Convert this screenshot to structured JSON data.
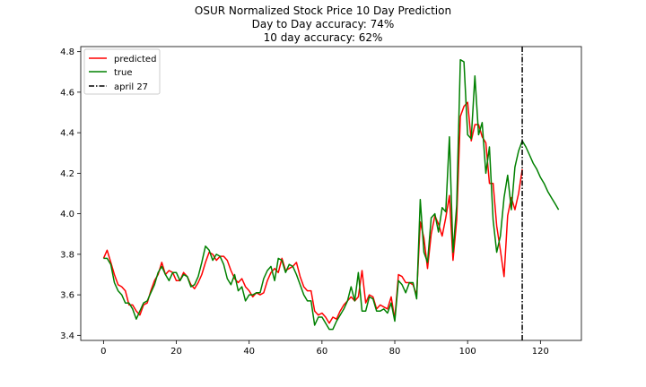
{
  "chart_data": {
    "type": "line",
    "title_lines": [
      "OSUR Normalized Stock Price 10 Day Prediction",
      "Day to Day accuracy: 74%",
      "10 day accuracy: 62%"
    ],
    "xlabel": "",
    "ylabel": "",
    "xlim": [
      -6.25,
      131.25
    ],
    "ylim": [
      3.375,
      4.825
    ],
    "xticks": [
      0,
      20,
      40,
      60,
      80,
      100,
      120
    ],
    "yticks": [
      3.4,
      3.6,
      3.8,
      4.0,
      4.2,
      4.4,
      4.6,
      4.8
    ],
    "grid": false,
    "legend_position": "upper-left",
    "series": [
      {
        "name": "predicted",
        "color": "#ff0000",
        "x": [
          0,
          1,
          2,
          3,
          4,
          5,
          6,
          7,
          8,
          9,
          10,
          11,
          12,
          13,
          14,
          15,
          16,
          17,
          18,
          19,
          20,
          21,
          22,
          23,
          24,
          25,
          26,
          27,
          28,
          29,
          30,
          31,
          32,
          33,
          34,
          35,
          36,
          37,
          38,
          39,
          40,
          41,
          42,
          43,
          44,
          45,
          46,
          47,
          48,
          49,
          50,
          51,
          52,
          53,
          54,
          55,
          56,
          57,
          58,
          59,
          60,
          61,
          62,
          63,
          64,
          65,
          66,
          67,
          68,
          69,
          70,
          71,
          72,
          73,
          74,
          75,
          76,
          77,
          78,
          79,
          80,
          81,
          82,
          83,
          84,
          85,
          86,
          87,
          88,
          89,
          90,
          91,
          92,
          93,
          94,
          95,
          96,
          97,
          98,
          99,
          100,
          101,
          102,
          103,
          104,
          105,
          106,
          107,
          108,
          109,
          110,
          111,
          112,
          113,
          114,
          115
        ],
        "values": [
          3.78,
          3.82,
          3.76,
          3.7,
          3.65,
          3.64,
          3.62,
          3.55,
          3.55,
          3.52,
          3.5,
          3.55,
          3.56,
          3.62,
          3.67,
          3.7,
          3.76,
          3.7,
          3.72,
          3.71,
          3.67,
          3.67,
          3.71,
          3.69,
          3.65,
          3.63,
          3.66,
          3.7,
          3.76,
          3.81,
          3.8,
          3.77,
          3.79,
          3.79,
          3.77,
          3.72,
          3.68,
          3.66,
          3.68,
          3.64,
          3.62,
          3.59,
          3.61,
          3.6,
          3.61,
          3.67,
          3.71,
          3.73,
          3.71,
          3.78,
          3.72,
          3.73,
          3.74,
          3.76,
          3.69,
          3.64,
          3.62,
          3.62,
          3.52,
          3.5,
          3.51,
          3.49,
          3.46,
          3.49,
          3.48,
          3.52,
          3.55,
          3.57,
          3.59,
          3.57,
          3.59,
          3.72,
          3.56,
          3.6,
          3.59,
          3.53,
          3.55,
          3.54,
          3.53,
          3.59,
          3.48,
          3.7,
          3.69,
          3.66,
          3.66,
          3.65,
          3.6,
          3.96,
          3.88,
          3.73,
          3.9,
          3.99,
          3.95,
          3.89,
          3.98,
          4.09,
          3.77,
          3.97,
          4.48,
          4.53,
          4.55,
          4.36,
          4.44,
          4.44,
          4.38,
          4.35,
          4.15,
          4.15,
          3.94,
          3.82,
          3.69,
          3.99,
          4.08,
          4.02,
          4.1,
          4.22
        ]
      },
      {
        "name": "true",
        "color": "#008000",
        "x": [
          0,
          1,
          2,
          3,
          4,
          5,
          6,
          7,
          8,
          9,
          10,
          11,
          12,
          13,
          14,
          15,
          16,
          17,
          18,
          19,
          20,
          21,
          22,
          23,
          24,
          25,
          26,
          27,
          28,
          29,
          30,
          31,
          32,
          33,
          34,
          35,
          36,
          37,
          38,
          39,
          40,
          41,
          42,
          43,
          44,
          45,
          46,
          47,
          48,
          49,
          50,
          51,
          52,
          53,
          54,
          55,
          56,
          57,
          58,
          59,
          60,
          61,
          62,
          63,
          64,
          65,
          66,
          67,
          68,
          69,
          70,
          71,
          72,
          73,
          74,
          75,
          76,
          77,
          78,
          79,
          80,
          81,
          82,
          83,
          84,
          85,
          86,
          87,
          88,
          89,
          90,
          91,
          92,
          93,
          94,
          95,
          96,
          97,
          98,
          99,
          100,
          101,
          102,
          103,
          104,
          105,
          106,
          107,
          108,
          109,
          110,
          111,
          112,
          113,
          114,
          115,
          116,
          117,
          118,
          119,
          120,
          121,
          122,
          123,
          124,
          125
        ],
        "values": [
          3.78,
          3.78,
          3.75,
          3.66,
          3.62,
          3.6,
          3.56,
          3.56,
          3.53,
          3.48,
          3.52,
          3.56,
          3.57,
          3.61,
          3.65,
          3.71,
          3.74,
          3.7,
          3.67,
          3.71,
          3.71,
          3.67,
          3.7,
          3.69,
          3.64,
          3.65,
          3.69,
          3.76,
          3.84,
          3.82,
          3.77,
          3.8,
          3.79,
          3.75,
          3.68,
          3.65,
          3.7,
          3.62,
          3.64,
          3.57,
          3.6,
          3.6,
          3.61,
          3.61,
          3.68,
          3.72,
          3.74,
          3.67,
          3.78,
          3.77,
          3.71,
          3.75,
          3.74,
          3.7,
          3.65,
          3.6,
          3.57,
          3.57,
          3.45,
          3.49,
          3.49,
          3.46,
          3.43,
          3.43,
          3.47,
          3.5,
          3.53,
          3.57,
          3.64,
          3.57,
          3.71,
          3.52,
          3.52,
          3.59,
          3.58,
          3.52,
          3.52,
          3.53,
          3.51,
          3.56,
          3.47,
          3.67,
          3.65,
          3.61,
          3.66,
          3.66,
          3.58,
          4.07,
          3.81,
          3.76,
          3.98,
          4.0,
          3.91,
          4.03,
          4.01,
          4.38,
          3.81,
          4.04,
          4.76,
          4.75,
          4.39,
          4.37,
          4.68,
          4.39,
          4.45,
          4.2,
          4.33,
          3.97,
          3.81,
          3.89,
          4.08,
          4.19,
          4.02,
          4.23,
          4.31,
          4.36,
          4.33,
          4.29,
          4.25,
          4.22,
          4.18,
          4.15,
          4.11,
          4.08,
          4.05,
          4.02
        ]
      }
    ],
    "vline": {
      "name": "april 27",
      "x": 115,
      "color": "#000000",
      "style": "dash-dot"
    }
  }
}
